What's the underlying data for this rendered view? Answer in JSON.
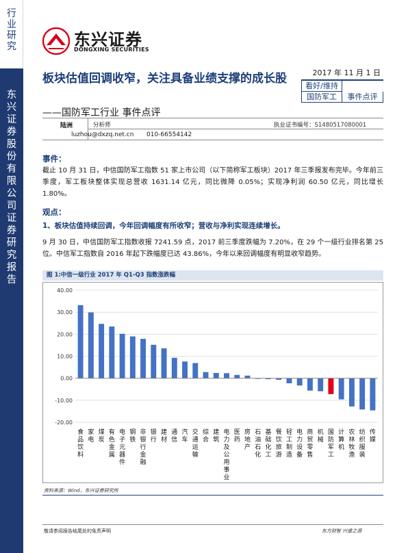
{
  "side": {
    "category": "行业研究",
    "company": "东兴证券股份有限公司证券研究报告"
  },
  "logo": {
    "cn": "东兴证券",
    "en": "DONGXING SECURITIES"
  },
  "header": {
    "title": "板块估值回调收窄，关注具备业绩支撑的成长股",
    "subtitle": "——国防军工行业 事件点评",
    "date": "2017 年 11 月 1 日",
    "rating": "看好/维持",
    "tag_industry": "国防军工",
    "tag_type": "事件点评"
  },
  "analyst": {
    "name": "陆洲",
    "role": "分析师",
    "cert": "执业证书编号：S1480517080001",
    "email": "luzhou@dxzq.net.cn",
    "phone": "010-66554142"
  },
  "event": {
    "heading": "事件：",
    "text": "截止 10 月 31 日，中信国防军工指数 51 家上市公司（以下简称军工板块）2017 年三季报发布完毕。今年前三季度，军工板块整体实现总营收 1631.14 亿元，同比微降 0.05%；实现净利润 60.50 亿元，同比增长 1.80%。"
  },
  "views": {
    "heading": "观点：",
    "point1": "1、板块估值持续回调，今年回调幅度有所收窄；营收与净利实现连续增长。",
    "text1": "9 月 30 日，中信国防军工指数收报 7241.59 点，2017 前三季度跌幅为 7.20%，在 29 个一级行业排名第 25 位。中信军工指数自 2016 年起下跌幅度已达 43.86%，今年以来回调幅度有明显收窄趋势。"
  },
  "figure": {
    "title": "图 1:中信一级行业 2017 年 Q1-Q3 指数涨跌幅",
    "source": "资料来源：Wind，东兴证券研究所"
  },
  "chart_data": {
    "type": "bar",
    "ylim": [
      -20,
      40
    ],
    "yticks": [
      "40.00",
      "30.00",
      "20.00",
      "10.00",
      "0.00",
      "-10.00",
      "-20.00"
    ],
    "grid": true,
    "bar_color": "#4472c4",
    "highlight_color": "#e0001b",
    "highlight_category": "国防军工",
    "categories": [
      "食品饮料",
      "家电",
      "煤炭",
      "有色金属",
      "电子元器件",
      "钢铁",
      "非银行金融",
      "银行",
      "建材",
      "通信",
      "汽车",
      "交通运输",
      "综合",
      "建筑",
      "电力及公用事业",
      "医药",
      "房地产",
      "石油石化",
      "基础化工",
      "餐饮旅游",
      "轻工制造",
      "电力设备",
      "商贸零售",
      "机械",
      "国防军工",
      "计算机",
      "农林牧渔",
      "纺织服装",
      "传媒"
    ],
    "values": [
      33.2,
      29.9,
      24.7,
      23.5,
      20.2,
      19.0,
      17.9,
      15.2,
      13.6,
      9.3,
      7.6,
      6.9,
      2.8,
      2.4,
      2.3,
      1.5,
      1.2,
      -0.3,
      -0.4,
      -0.7,
      -2.3,
      -3.3,
      -5.6,
      -5.9,
      -7.2,
      -9.6,
      -12.8,
      -14.2,
      -14.6
    ]
  },
  "footer": {
    "left": "敬请参阅报告结尾处的免责声明",
    "right": "东方财智 兴盛之源"
  }
}
